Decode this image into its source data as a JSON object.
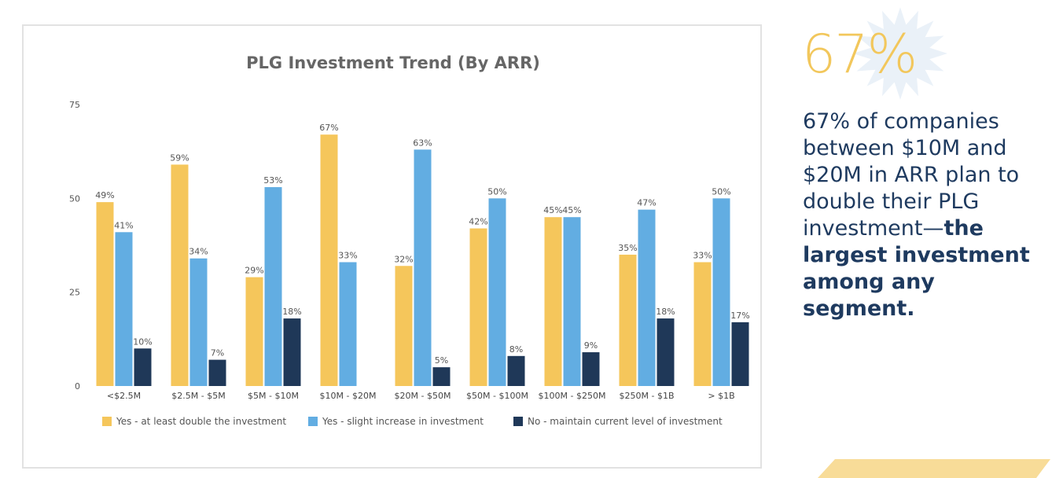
{
  "chart_data": {
    "type": "bar",
    "title": "PLG Investment Trend (By ARR)",
    "categories": [
      "<$2.5M",
      "$2.5M - $5M",
      "$5M - $10M",
      "$10M - $20M",
      "$20M - $50M",
      "$50M - $100M",
      "$100M - $250M",
      "$250M - $1B",
      "> $1B"
    ],
    "series": [
      {
        "name": "Yes - at least double the investment",
        "color": "#f5c65b",
        "values": [
          49,
          59,
          29,
          67,
          32,
          42,
          45,
          35,
          33
        ],
        "labels": [
          "49%",
          "59%",
          "29%",
          "67%",
          "32%",
          "42%",
          "45%",
          "35%",
          "33%"
        ]
      },
      {
        "name": "Yes - slight increase in investment",
        "color": "#62ade2",
        "values": [
          41,
          34,
          53,
          33,
          63,
          50,
          45,
          47,
          50
        ],
        "labels": [
          "41%",
          "34%",
          "53%",
          "33%",
          "63%",
          "50%",
          "45%",
          "47%",
          "50%"
        ]
      },
      {
        "name": "No - maintain current level of investment",
        "color": "#1f3858",
        "values": [
          10,
          7,
          18,
          null,
          5,
          8,
          9,
          18,
          17
        ],
        "labels": [
          "10%",
          "7%",
          "18%",
          "",
          "5%",
          "8%",
          "9%",
          "18%",
          "17%"
        ]
      }
    ],
    "yticks": [
      "0",
      "25",
      "50",
      "75"
    ],
    "ylim": [
      0,
      75
    ],
    "grid": false,
    "legend_position": "bottom"
  },
  "callout": {
    "big_number": "67%",
    "text_regular": "67% of companies between $10M and $20M in ARR plan to double their PLG investment—",
    "text_bold": "the largest investment among any segment.",
    "accent_color": "#f2c75c",
    "text_color": "#1e3a5f"
  }
}
